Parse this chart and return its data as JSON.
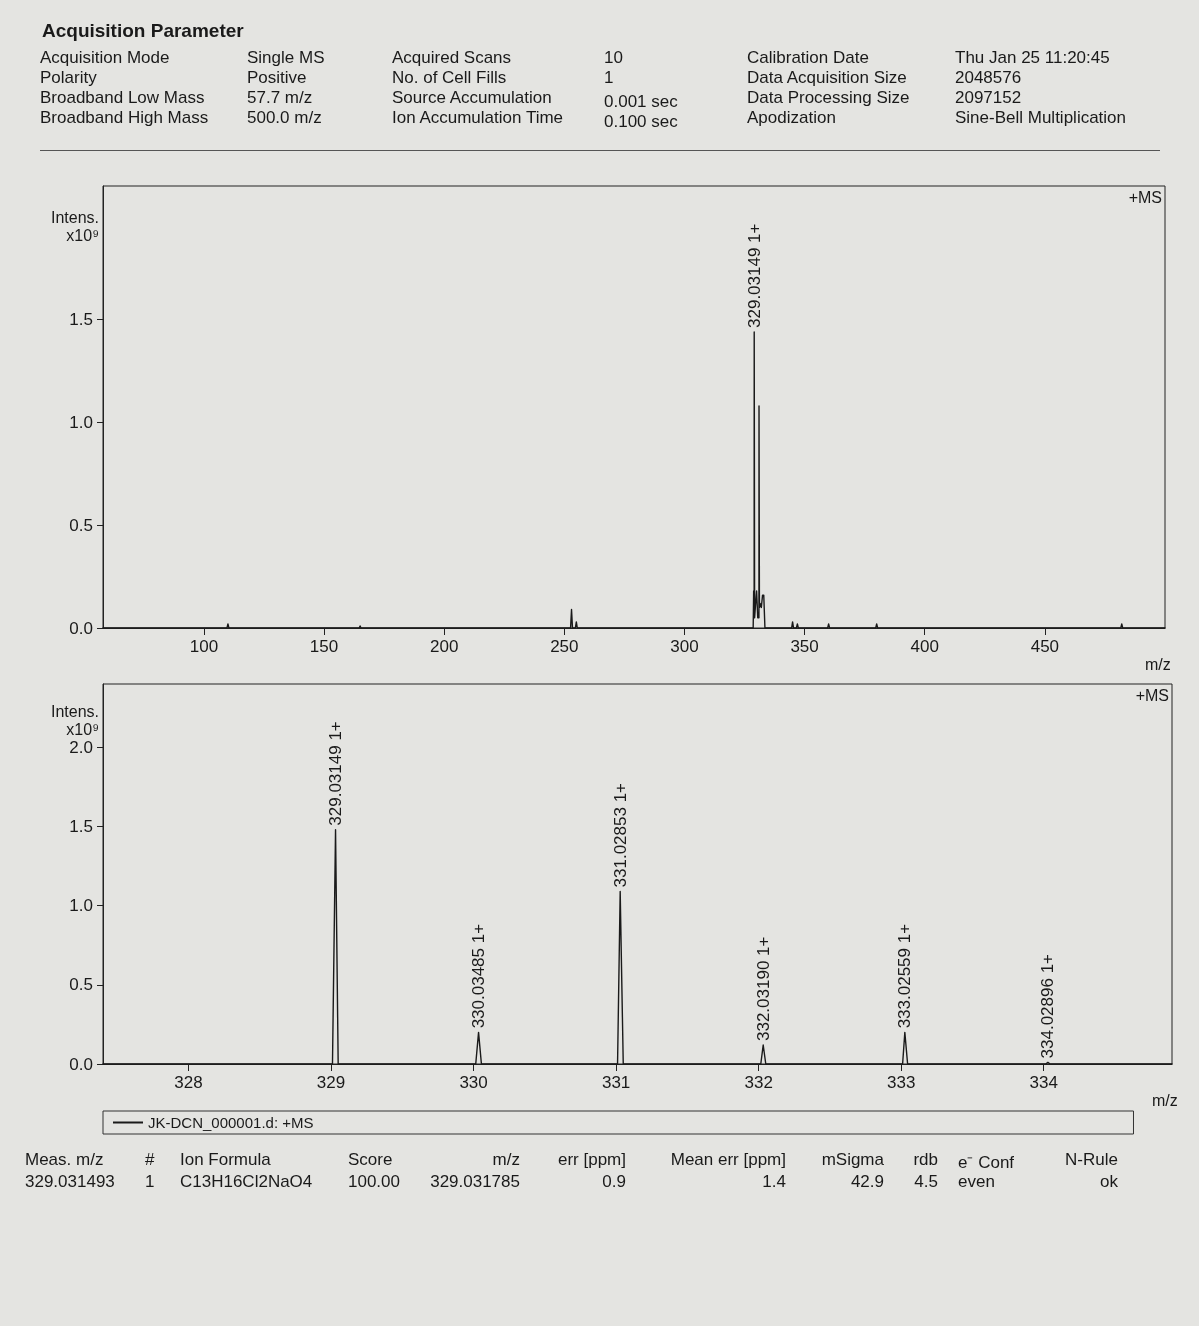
{
  "chart_data": [
    {
      "type": "other",
      "title": "Acquisition Parameter",
      "annotations": [
        "Acquisition Mode",
        "Polarity",
        "Broadband Low Mass",
        "Broadband High Mass",
        "Single MS",
        "Positive",
        "57.7 m/z",
        "500.0 m/z",
        "Acquired Scans",
        "No. of Cell Fills",
        "Source Accumulation",
        "Ion Accumulation Time",
        "10",
        "1",
        "0.001 sec",
        "0.100 sec",
        "Calibration Date",
        "Data Acquisition Size",
        "Data Processing Size",
        "Apodization",
        "Thu Jan 25 11:20:45",
        "2048576",
        "2097152",
        "Sine-Bell Multiplication"
      ]
    },
    {
      "type": "line",
      "ylabel": "Intens.\nx10⁹",
      "xlabel": "m/z",
      "marker": "none",
      "xlim": [
        58,
        500
      ],
      "xticks": [
        100,
        150,
        200,
        250,
        300,
        350,
        400,
        450
      ],
      "ylim": [
        0,
        2.15
      ],
      "yticks": [
        {
          "value": 0,
          "label": "0.0"
        },
        {
          "value": 0.5,
          "label": "0.5"
        },
        {
          "value": 1,
          "label": "1.0"
        },
        {
          "value": 1.5,
          "label": "1.5"
        }
      ],
      "series": [
        {
          "color": "#1a1a1a",
          "x": [
            58,
            109.6,
            110,
            110.4,
            164.6,
            165,
            165.4,
            252.6,
            253,
            253.4,
            254.6,
            255,
            255.4,
            328.6,
            328.8,
            329.0,
            329.03149,
            329.2,
            329.5,
            330.03,
            330.5,
            331.0,
            331.03,
            331.2,
            331.5,
            332.0,
            332.5,
            333.0,
            333.5,
            344.6,
            345,
            345.4,
            346.6,
            347,
            347.4,
            359.6,
            360,
            360.4,
            379.6,
            380,
            380.4,
            481.6,
            482,
            482.4,
            500
          ],
          "values": [
            0,
            0,
            0.02,
            0,
            0,
            0.01,
            0,
            0,
            0.09,
            0,
            0,
            0.03,
            0,
            0,
            0.18,
            0.05,
            1.44,
            0.05,
            0.1,
            0.18,
            0.05,
            0.05,
            1.08,
            0.1,
            0.12,
            0.1,
            0.16,
            0.16,
            0,
            0,
            0.03,
            0,
            0,
            0.02,
            0,
            0,
            0.02,
            0,
            0,
            0.02,
            0,
            0,
            0.02,
            0,
            0
          ]
        }
      ],
      "annotations": [
        "+MS",
        {
          "text": "329.03149 1+",
          "x": 329.03149,
          "y": 1.44
        }
      ]
    },
    {
      "type": "line",
      "ylabel": "Intens.\nx10⁹",
      "xlabel": "m/z",
      "marker": "none",
      "legend": "bottom",
      "xlim": [
        327.4,
        334.9
      ],
      "xticks": [
        328,
        329,
        330,
        331,
        332,
        333,
        334
      ],
      "ylim": [
        0,
        2.4
      ],
      "yticks": [
        {
          "value": 0,
          "label": "0.0"
        },
        {
          "value": 0.5,
          "label": "0.5"
        },
        {
          "value": 1,
          "label": "1.0"
        },
        {
          "value": 1.5,
          "label": "1.5"
        },
        {
          "value": 2,
          "label": "2.0"
        }
      ],
      "series": [
        {
          "name": "JK-DCN_000001.d: +MS",
          "color": "#1a1a1a",
          "x": [
            327.4,
            329.01,
            329.03149,
            329.05,
            330.015,
            330.03485,
            330.055,
            331.01,
            331.02853,
            331.05,
            332.015,
            332.0319,
            332.05,
            333.01,
            333.02559,
            333.045,
            334.015,
            334.02896,
            334.045,
            334.9
          ],
          "values": [
            0,
            0,
            1.48,
            0,
            0,
            0.2,
            0,
            0,
            1.09,
            0,
            0,
            0.12,
            0,
            0,
            0.2,
            0,
            0,
            0.01,
            0,
            0
          ]
        }
      ],
      "annotations": [
        "+MS",
        {
          "text": "329.03149 1+",
          "x": 329.03149,
          "y": 1.48
        },
        {
          "text": "330.03485 1+",
          "x": 330.03485,
          "y": 0.2
        },
        {
          "text": "331.02853 1+",
          "x": 331.02853,
          "y": 1.09
        },
        {
          "text": "332.03190 1+",
          "x": 332.0319,
          "y": 0.12
        },
        {
          "text": "333.02559 1+",
          "x": 333.02559,
          "y": 0.2
        },
        {
          "text": "334.02896 1+",
          "x": 334.02896,
          "y": 0.01
        }
      ]
    },
    {
      "type": "other",
      "annotations": [
        "Meas. m/z",
        "#",
        "Ion Formula",
        "Score",
        "m/z",
        "err [ppm]",
        "Mean err [ppm]",
        "mSigma",
        "rdb",
        "e⁻ Conf",
        "N-Rule",
        "329.031493",
        "1",
        "C13H16Cl2NaO4",
        "100.00",
        "329.031785",
        "0.9",
        "1.4",
        "42.9",
        "4.5",
        "even",
        "ok"
      ]
    }
  ]
}
